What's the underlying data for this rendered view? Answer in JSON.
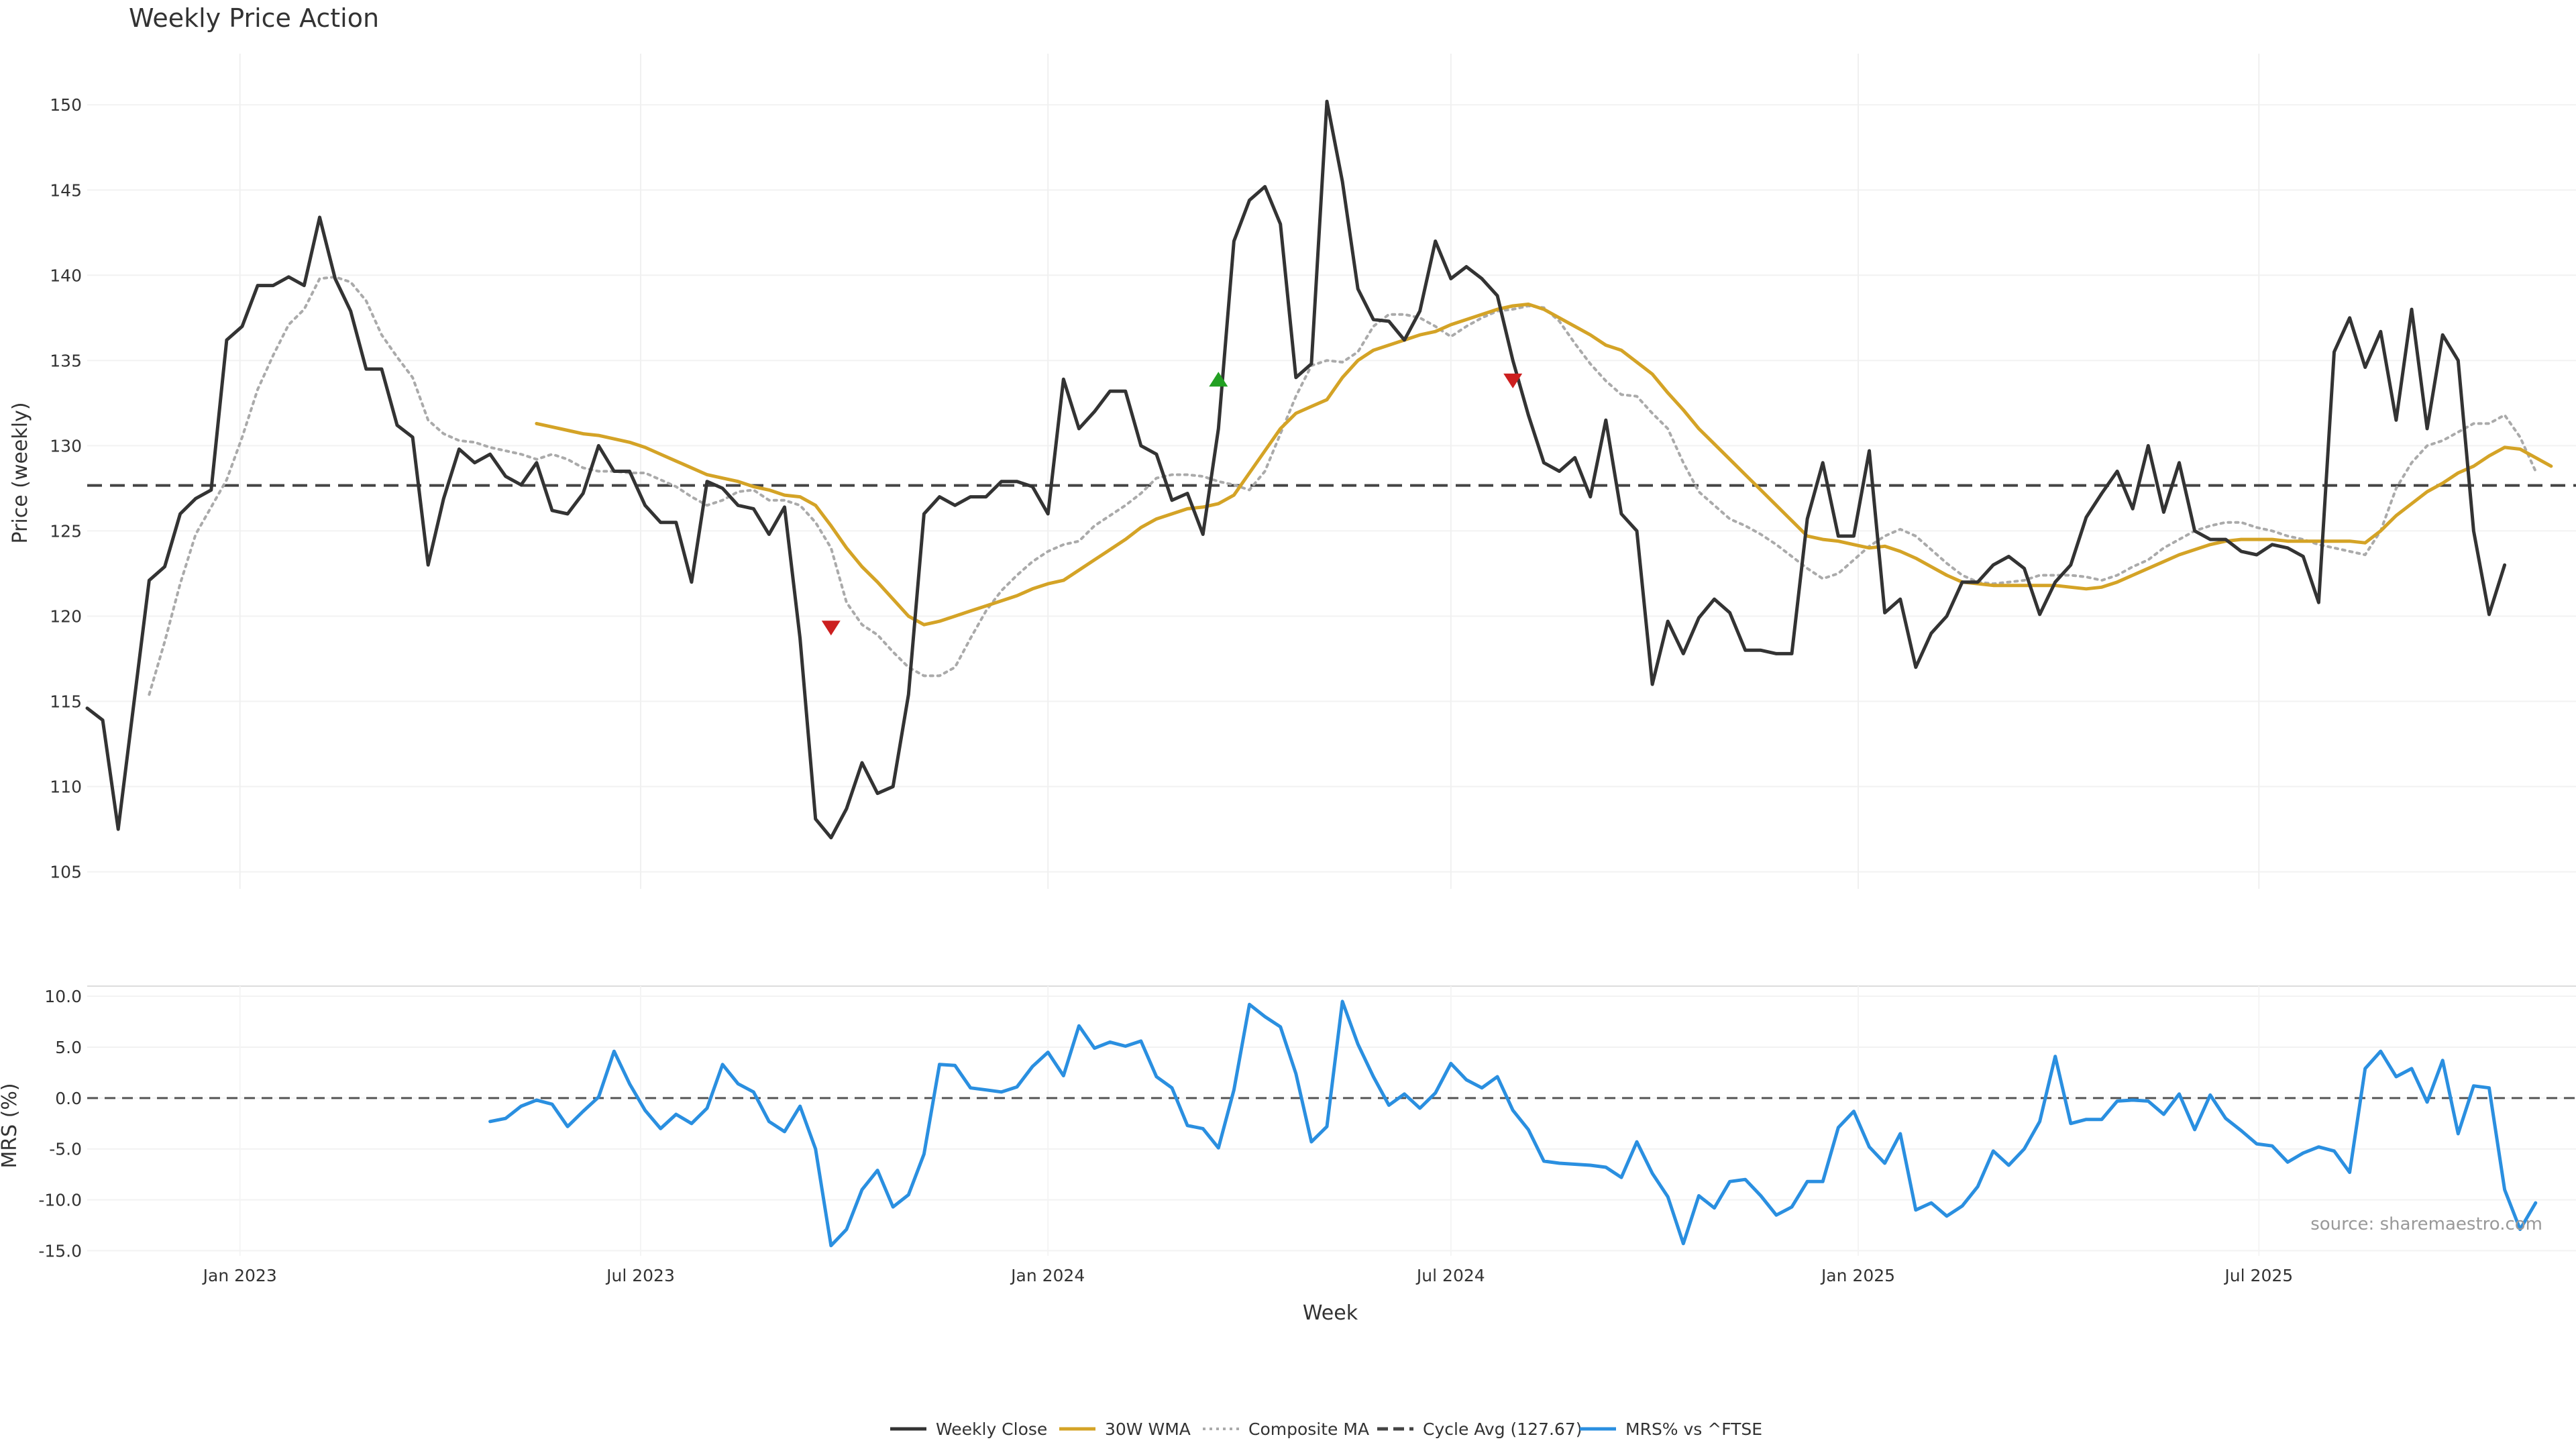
{
  "chart_data": {
    "type": "line",
    "title": "Weekly Price Action",
    "source": "source: sharemaestro.com",
    "xlabel": "Week",
    "x_ticks": [
      "Jan 2023",
      "Jul 2023",
      "Jan 2024",
      "Jul 2024",
      "Jan 2025",
      "Jul 2025"
    ],
    "x_start": "2022-10-24",
    "x_step_days": 7,
    "price_panel": {
      "ylabel": "Price (weekly)",
      "ylim": [
        104,
        153
      ],
      "yticks": [
        "105",
        "110",
        "115",
        "120",
        "125",
        "130",
        "135",
        "140",
        "145",
        "150"
      ],
      "cycle_avg": 127.67,
      "series": [
        {
          "name": "Weekly Close",
          "color": "#333333",
          "style": "solid",
          "start_index": 0,
          "values": [
            114.6,
            113.9,
            107.5,
            114.8,
            122.1,
            122.9,
            126.0,
            126.9,
            127.4,
            136.2,
            137.0,
            139.4,
            139.4,
            139.9,
            139.4,
            143.4,
            139.8,
            137.9,
            134.5,
            134.5,
            131.2,
            130.5,
            123.0,
            126.9,
            129.8,
            129.0,
            129.5,
            128.2,
            127.7,
            129.0,
            126.2,
            126.0,
            127.2,
            130.0,
            128.5,
            128.5,
            126.5,
            125.5,
            125.5,
            122.0,
            127.9,
            127.5,
            126.5,
            126.3,
            124.8,
            126.4,
            118.7,
            108.1,
            107.0,
            108.7,
            111.4,
            109.6,
            110.0,
            115.4,
            126.0,
            127.0,
            126.5,
            127.0,
            127.0,
            127.9,
            127.9,
            127.6,
            126.0,
            133.9,
            131.0,
            132.0,
            133.2,
            133.2,
            130.0,
            129.5,
            126.8,
            127.2,
            124.8,
            131.0,
            142.0,
            144.4,
            145.2,
            143.0,
            134.0,
            134.8,
            150.2,
            145.5,
            139.2,
            137.4,
            137.3,
            136.2,
            137.9,
            142.0,
            139.8,
            140.5,
            139.8,
            138.8,
            135.0,
            131.8,
            129.0,
            128.5,
            129.3,
            127.0,
            131.5,
            126.0,
            125.0,
            116.0,
            119.7,
            117.8,
            119.9,
            121.0,
            120.2,
            118.0,
            118.0,
            117.8,
            117.8,
            125.7,
            129.0,
            124.7,
            124.7,
            129.7,
            120.2,
            121.0,
            117.0,
            119.0,
            120.0,
            122.0,
            122.0,
            123.0,
            123.5,
            122.8,
            120.1,
            122.0,
            123.0,
            125.8,
            127.2,
            128.5,
            126.3,
            130.0,
            126.1,
            129.0,
            125.0,
            124.5,
            124.5,
            123.8,
            123.6,
            124.2,
            124.0,
            123.5,
            120.8,
            135.5,
            137.5,
            134.6,
            136.7,
            131.5,
            138.0,
            131.0,
            136.5,
            135.0,
            125.0,
            120.1,
            123.0
          ]
        },
        {
          "name": "30W WMA",
          "color": "#d4a326",
          "style": "solid",
          "start_index": 29,
          "values": [
            131.3,
            131.1,
            130.9,
            130.7,
            130.6,
            130.4,
            130.2,
            129.9,
            129.5,
            129.1,
            128.7,
            128.3,
            128.1,
            127.9,
            127.6,
            127.4,
            127.1,
            127.0,
            126.5,
            125.3,
            124.0,
            122.9,
            122.0,
            121.0,
            120.0,
            119.5,
            119.7,
            120.0,
            120.3,
            120.6,
            120.9,
            121.2,
            121.6,
            121.9,
            122.1,
            122.7,
            123.3,
            123.9,
            124.5,
            125.2,
            125.7,
            126.0,
            126.3,
            126.4,
            126.6,
            127.1,
            128.4,
            129.7,
            131.0,
            131.9,
            132.3,
            132.7,
            134.0,
            135.0,
            135.6,
            135.9,
            136.2,
            136.5,
            136.7,
            137.1,
            137.4,
            137.7,
            138.0,
            138.2,
            138.3,
            138.0,
            137.5,
            137.0,
            136.5,
            135.9,
            135.6,
            134.9,
            134.2,
            133.1,
            132.1,
            131.0,
            130.1,
            129.2,
            128.3,
            127.4,
            126.5,
            125.6,
            124.7,
            124.5,
            124.4,
            124.2,
            124.0,
            124.1,
            123.8,
            123.4,
            122.9,
            122.4,
            122.0,
            121.9,
            121.8,
            121.8,
            121.8,
            121.8,
            121.8,
            121.7,
            121.6,
            121.7,
            122.0,
            122.4,
            122.8,
            123.2,
            123.6,
            123.9,
            124.2,
            124.4,
            124.5,
            124.5,
            124.5,
            124.4,
            124.4,
            124.4,
            124.4,
            124.4,
            124.3,
            125.0,
            125.9,
            126.6,
            127.3,
            127.8,
            128.4,
            128.8,
            129.4,
            129.9,
            129.8,
            129.3,
            128.8
          ]
        },
        {
          "name": "Composite MA",
          "color": "#aaaaaa",
          "style": "dotted",
          "start_index": 4,
          "values": [
            115.4,
            118.5,
            121.9,
            124.8,
            126.4,
            128.0,
            130.5,
            133.3,
            135.3,
            137.1,
            138.0,
            139.8,
            139.9,
            139.6,
            138.5,
            136.5,
            135.2,
            134.0,
            131.5,
            130.7,
            130.3,
            130.2,
            129.9,
            129.7,
            129.5,
            129.2,
            129.5,
            129.2,
            128.7,
            128.5,
            128.5,
            128.4,
            128.4,
            128.0,
            127.6,
            127.0,
            126.5,
            126.8,
            127.3,
            127.4,
            126.8,
            126.8,
            126.5,
            125.5,
            124.0,
            120.8,
            119.5,
            118.9,
            117.9,
            117.0,
            116.5,
            116.5,
            117.0,
            118.7,
            120.3,
            121.5,
            122.4,
            123.2,
            123.8,
            124.2,
            124.4,
            125.3,
            125.9,
            126.5,
            127.2,
            128.1,
            128.3,
            128.3,
            128.2,
            127.9,
            127.7,
            127.4,
            128.5,
            130.7,
            132.9,
            134.7,
            135.0,
            134.9,
            135.5,
            137.0,
            137.7,
            137.7,
            137.5,
            137.0,
            136.4,
            137.0,
            137.5,
            137.9,
            138.0,
            138.2,
            138.1,
            137.3,
            136.0,
            134.8,
            133.8,
            133.0,
            132.9,
            131.9,
            131.0,
            129.0,
            127.3,
            126.5,
            125.7,
            125.3,
            124.8,
            124.2,
            123.5,
            122.8,
            122.2,
            122.5,
            123.3,
            124.1,
            124.7,
            125.1,
            124.7,
            123.9,
            123.1,
            122.4,
            122.0,
            121.9,
            122.0,
            122.1,
            122.4,
            122.4,
            122.4,
            122.3,
            122.1,
            122.4,
            122.9,
            123.3,
            124.0,
            124.5,
            125.0,
            125.3,
            125.5,
            125.5,
            125.2,
            125.0,
            124.7,
            124.5,
            124.2,
            124.0,
            123.8,
            123.6,
            125.0,
            127.5,
            129.0,
            130.0,
            130.3,
            130.8,
            131.3,
            131.3,
            131.8,
            130.5,
            128.5
          ]
        },
        {
          "name": "Cycle Avg (127.67)",
          "color": "#444444",
          "style": "dashed"
        }
      ],
      "markers": [
        {
          "type": "sell",
          "index": 48,
          "value": 119.3,
          "color": "#cc1f1f"
        },
        {
          "type": "buy",
          "index": 73,
          "value": 133.9,
          "color": "#22a022"
        },
        {
          "type": "sell",
          "index": 92,
          "value": 133.8,
          "color": "#cc1f1f"
        }
      ]
    },
    "mrs_panel": {
      "ylabel": "MRS (%)",
      "ylim": [
        -15.5,
        11
      ],
      "yticks": [
        "10.0",
        "5.0",
        "0.0",
        "-5.0",
        "-10.0",
        "-15.0"
      ],
      "series": [
        {
          "name": "MRS% vs ^FTSE",
          "color": "#2a8fe0",
          "style": "solid",
          "start_index": 26,
          "values": [
            -2.3,
            -2.0,
            -0.8,
            -0.2,
            -0.6,
            -2.8,
            -1.3,
            0.1,
            4.6,
            1.4,
            -1.2,
            -3.0,
            -1.6,
            -2.5,
            -1.0,
            3.3,
            1.4,
            0.6,
            -2.3,
            -3.3,
            -0.8,
            -5.0,
            -14.5,
            -12.9,
            -9.0,
            -7.1,
            -10.7,
            -9.5,
            -5.5,
            3.3,
            3.2,
            1.0,
            0.8,
            0.6,
            1.1,
            3.1,
            4.5,
            2.2,
            7.1,
            4.9,
            5.5,
            5.1,
            5.6,
            2.1,
            1.0,
            -2.7,
            -3.0,
            -4.9,
            0.8,
            9.2,
            8.0,
            7.0,
            2.4,
            -4.3,
            -2.8,
            9.5,
            5.3,
            2.1,
            -0.7,
            0.4,
            -1.0,
            0.5,
            3.4,
            1.8,
            1.0,
            2.1,
            -1.2,
            -3.1,
            -6.2,
            -6.4,
            -6.5,
            -6.6,
            -6.8,
            -7.8,
            -4.3,
            -7.4,
            -9.7,
            -14.3,
            -9.6,
            -10.8,
            -8.2,
            -8.0,
            -9.6,
            -11.5,
            -10.7,
            -8.2,
            -8.2,
            -2.9,
            -1.3,
            -4.8,
            -6.4,
            -3.5,
            -11.0,
            -10.3,
            -11.6,
            -10.6,
            -8.7,
            -5.2,
            -6.6,
            -5.0,
            -2.3,
            4.1,
            -2.5,
            -2.1,
            -2.1,
            -0.3,
            -0.2,
            -0.3,
            -1.6,
            0.4,
            -3.1,
            0.3,
            -2.0,
            -3.2,
            -4.5,
            -4.7,
            -6.3,
            -5.4,
            -4.8,
            -5.2,
            -7.3,
            2.9,
            4.6,
            2.1,
            2.9,
            -0.4,
            3.7,
            -3.5,
            1.2,
            1.0,
            -9.0,
            -12.9,
            -10.3
          ]
        }
      ],
      "zero_line": 0
    },
    "legend": {
      "position": "bottom-center",
      "entries": [
        {
          "label": "Weekly Close",
          "color": "#333333",
          "style": "solid"
        },
        {
          "label": "30W WMA",
          "color": "#d4a326",
          "style": "solid"
        },
        {
          "label": "Composite MA",
          "color": "#aaaaaa",
          "style": "dotted"
        },
        {
          "label": "Cycle Avg (127.67)",
          "color": "#444444",
          "style": "dashed"
        },
        {
          "label": "MRS% vs ^FTSE",
          "color": "#2a8fe0",
          "style": "solid"
        }
      ]
    },
    "grid": true
  }
}
